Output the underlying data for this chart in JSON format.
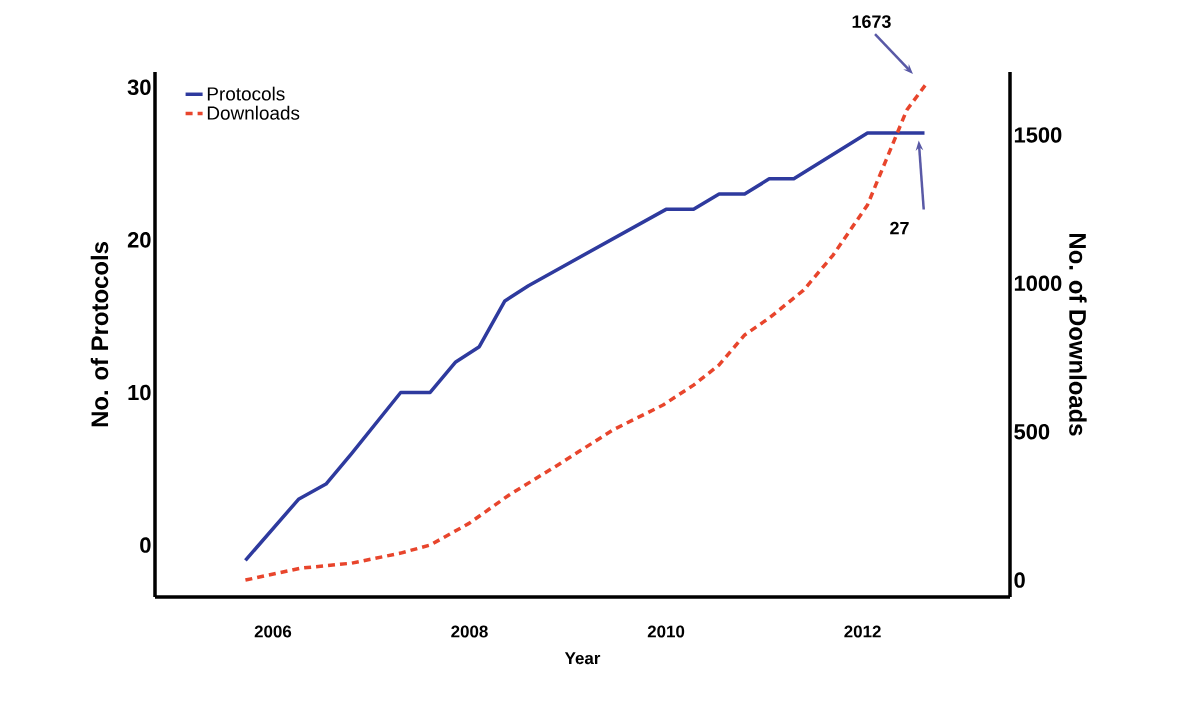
{
  "chart_data": {
    "type": "line",
    "xlabel": "Year",
    "ylabel": "No. of Protocols",
    "y2label": "No. of Downloads",
    "xlim": [
      2004.8,
      2013.5
    ],
    "xticks": [
      2006,
      2008,
      2010,
      2012
    ],
    "ylim": [
      -3.4,
      31
    ],
    "yticks": [
      0,
      10,
      20,
      30
    ],
    "y2lim": [
      -57,
      1712
    ],
    "y2ticks": [
      0,
      500,
      1000,
      1500
    ],
    "legend": "top left",
    "grid": false,
    "marker": "none",
    "series": [
      {
        "name": "Protocols",
        "color": "#2e3a9e",
        "line_style": "solid",
        "x": [
          2005.72,
          2006.26,
          2006.54,
          2006.8,
          2007.05,
          2007.3,
          2007.6,
          2007.86,
          2008.1,
          2008.36,
          2008.6,
          2010.0,
          2010.28,
          2010.54,
          2010.8,
          2011.05,
          2011.3,
          2012.05,
          2012.63
        ],
        "values": [
          -1,
          3,
          4,
          6,
          8,
          10,
          10,
          12,
          13,
          16,
          17,
          22,
          22,
          23,
          23,
          24,
          24,
          27,
          27
        ]
      },
      {
        "name": "Downloads",
        "color": "#e8452c",
        "line_style": "dashed",
        "axis": "y2",
        "x": [
          2005.72,
          2006.28,
          2006.8,
          2007.3,
          2007.6,
          2008.0,
          2008.4,
          2008.9,
          2009.46,
          2009.97,
          2010.28,
          2010.54,
          2010.8,
          2011.05,
          2011.4,
          2011.7,
          2012.05,
          2012.24,
          2012.45,
          2012.65
        ],
        "values": [
          0,
          40,
          57,
          91,
          118,
          192,
          286,
          388,
          506,
          590,
          657,
          725,
          826,
          883,
          977,
          1095,
          1264,
          1416,
          1584,
          1673
        ]
      }
    ],
    "annotations": [
      "1673",
      "27"
    ]
  }
}
